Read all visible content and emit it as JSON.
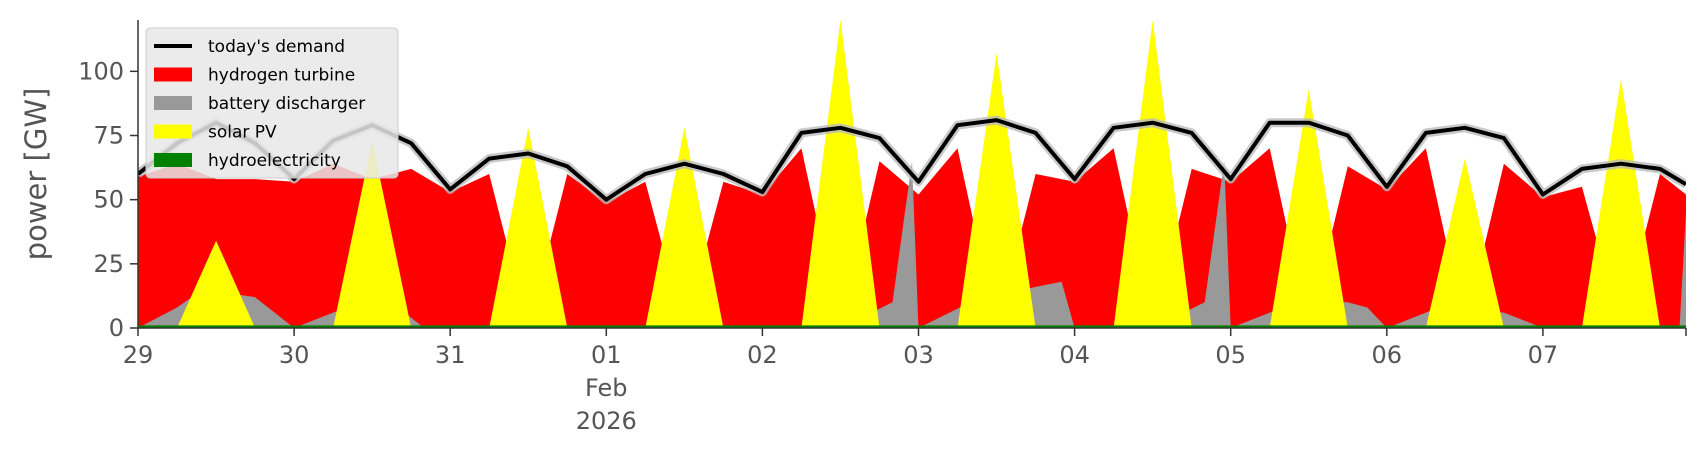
{
  "chart_data": {
    "type": "area",
    "ylabel": "power [GW]",
    "ylim": [
      0,
      120
    ],
    "yticks": [
      "0",
      "25",
      "50",
      "75",
      "100"
    ],
    "xlim": [
      "2026-01-29T00:00",
      "2026-02-07T22:00"
    ],
    "xticks": [
      {
        "date": "2026-01-29T00:00",
        "label": "29"
      },
      {
        "date": "2026-01-30T00:00",
        "label": "30"
      },
      {
        "date": "2026-01-31T00:00",
        "label": "31"
      },
      {
        "date": "2026-02-01T00:00",
        "label": "01"
      },
      {
        "date": "2026-02-02T00:00",
        "label": "02"
      },
      {
        "date": "2026-02-03T00:00",
        "label": "03"
      },
      {
        "date": "2026-02-04T00:00",
        "label": "04"
      },
      {
        "date": "2026-02-05T00:00",
        "label": "05"
      },
      {
        "date": "2026-02-06T00:00",
        "label": "06"
      },
      {
        "date": "2026-02-07T00:00",
        "label": "07"
      },
      {
        "date": "2026-02-07T22:00",
        "label": ""
      }
    ],
    "xtick_sublabels": {
      "month": "Feb",
      "year": "2026"
    },
    "grid": false,
    "legend_position": "top-left",
    "stack_order": [
      "hydroelectricity",
      "solar PV",
      "battery discharger",
      "hydrogen turbine"
    ],
    "series": [
      {
        "name": "today's demand",
        "kind": "line",
        "color": "#000000",
        "x": [
          "2026-01-29T00:00",
          "2026-01-29T06:00",
          "2026-01-29T12:00",
          "2026-01-29T18:00",
          "2026-01-30T00:00",
          "2026-01-30T06:00",
          "2026-01-30T12:00",
          "2026-01-30T18:00",
          "2026-01-31T00:00",
          "2026-01-31T06:00",
          "2026-01-31T12:00",
          "2026-01-31T18:00",
          "2026-02-01T00:00",
          "2026-02-01T06:00",
          "2026-02-01T12:00",
          "2026-02-01T18:00",
          "2026-02-02T00:00",
          "2026-02-02T06:00",
          "2026-02-02T12:00",
          "2026-02-02T18:00",
          "2026-02-03T00:00",
          "2026-02-03T06:00",
          "2026-02-03T12:00",
          "2026-02-03T18:00",
          "2026-02-04T00:00",
          "2026-02-04T06:00",
          "2026-02-04T12:00",
          "2026-02-04T18:00",
          "2026-02-05T00:00",
          "2026-02-05T06:00",
          "2026-02-05T12:00",
          "2026-02-05T18:00",
          "2026-02-06T00:00",
          "2026-02-06T06:00",
          "2026-02-06T12:00",
          "2026-02-06T18:00",
          "2026-02-07T00:00",
          "2026-02-07T06:00",
          "2026-02-07T12:00",
          "2026-02-07T18:00",
          "2026-02-07T22:00"
        ],
        "values": [
          60,
          72,
          80,
          72,
          58,
          73,
          79,
          72,
          54,
          66,
          68,
          63,
          50,
          60,
          64,
          60,
          53,
          76,
          78,
          74,
          57,
          79,
          81,
          76,
          58,
          78,
          80,
          76,
          58,
          80,
          80,
          75,
          55,
          76,
          78,
          74,
          52,
          62,
          64,
          62,
          56
        ]
      },
      {
        "name": "hydrogen turbine",
        "kind": "area",
        "color": "#ff0000",
        "x": [
          "2026-01-29T00:00",
          "2026-01-29T06:00",
          "2026-01-29T12:00",
          "2026-01-29T18:00",
          "2026-01-30T00:00",
          "2026-01-30T06:00",
          "2026-01-30T12:00",
          "2026-01-30T18:00",
          "2026-01-31T00:00",
          "2026-01-31T06:00",
          "2026-01-31T12:00",
          "2026-01-31T18:00",
          "2026-02-01T00:00",
          "2026-02-01T06:00",
          "2026-02-01T12:00",
          "2026-02-01T18:00",
          "2026-02-02T00:00",
          "2026-02-02T06:00",
          "2026-02-02T12:00",
          "2026-02-02T18:00",
          "2026-02-03T00:00",
          "2026-02-03T06:00",
          "2026-02-03T12:00",
          "2026-02-03T18:00",
          "2026-02-04T00:00",
          "2026-02-04T06:00",
          "2026-02-04T12:00",
          "2026-02-04T18:00",
          "2026-02-05T00:00",
          "2026-02-05T06:00",
          "2026-02-05T12:00",
          "2026-02-05T18:00",
          "2026-02-06T00:00",
          "2026-02-06T06:00",
          "2026-02-06T12:00",
          "2026-02-06T18:00",
          "2026-02-07T00:00",
          "2026-02-07T06:00",
          "2026-02-07T12:00",
          "2026-02-07T18:00",
          "2026-02-07T22:00"
        ],
        "values": [
          59,
          64,
          58,
          58,
          57,
          64,
          58,
          62,
          53,
          60,
          0,
          60,
          49,
          57,
          0,
          57,
          52,
          70,
          0,
          65,
          52,
          70,
          0,
          60,
          57,
          70,
          0,
          62,
          57,
          70,
          0,
          63,
          54,
          70,
          0,
          64,
          51,
          55,
          0,
          60,
          52
        ]
      },
      {
        "name": "battery discharger",
        "kind": "area",
        "color": "#999999",
        "x": [
          "2026-01-29T00:00",
          "2026-01-29T06:00",
          "2026-01-29T10:00",
          "2026-01-29T18:00",
          "2026-01-30T00:00",
          "2026-01-30T08:00",
          "2026-01-30T16:00",
          "2026-01-30T20:00",
          "2026-01-31T00:00",
          "2026-01-31T12:00",
          "2026-01-31T23:00",
          "2026-02-01T00:00",
          "2026-02-01T12:00",
          "2026-02-01T23:00",
          "2026-02-02T00:00",
          "2026-02-02T12:00",
          "2026-02-02T20:00",
          "2026-02-02T23:00",
          "2026-02-03T00:00",
          "2026-02-03T08:00",
          "2026-02-03T18:00",
          "2026-02-03T22:00",
          "2026-02-04T00:00",
          "2026-02-04T12:00",
          "2026-02-04T20:00",
          "2026-02-04T23:00",
          "2026-02-05T00:00",
          "2026-02-05T10:00",
          "2026-02-05T18:00",
          "2026-02-05T21:00",
          "2026-02-06T00:00",
          "2026-02-06T08:00",
          "2026-02-06T18:00",
          "2026-02-07T00:00",
          "2026-02-07T12:00",
          "2026-02-07T21:00",
          "2026-02-07T22:00"
        ],
        "values": [
          0,
          8,
          15,
          12,
          0,
          8,
          8,
          0,
          0,
          0,
          0,
          0,
          0,
          0,
          0,
          0,
          10,
          65,
          0,
          10,
          16,
          18,
          0,
          0,
          10,
          65,
          0,
          10,
          10,
          8,
          0,
          8,
          6,
          0,
          0,
          0,
          45
        ]
      },
      {
        "name": "solar PV",
        "kind": "area",
        "color": "#ffff00",
        "x": [
          "2026-01-29T06:00",
          "2026-01-29T12:00",
          "2026-01-29T18:00",
          "2026-01-30T06:00",
          "2026-01-30T12:00",
          "2026-01-30T18:00",
          "2026-01-31T06:00",
          "2026-01-31T12:00",
          "2026-01-31T18:00",
          "2026-02-01T06:00",
          "2026-02-01T12:00",
          "2026-02-01T18:00",
          "2026-02-02T06:00",
          "2026-02-02T12:00",
          "2026-02-02T18:00",
          "2026-02-03T06:00",
          "2026-02-03T12:00",
          "2026-02-03T18:00",
          "2026-02-04T06:00",
          "2026-02-04T12:00",
          "2026-02-04T18:00",
          "2026-02-05T06:00",
          "2026-02-05T12:00",
          "2026-02-05T18:00",
          "2026-02-06T06:00",
          "2026-02-06T12:00",
          "2026-02-06T18:00",
          "2026-02-07T06:00",
          "2026-02-07T12:00",
          "2026-02-07T18:00"
        ],
        "values": [
          0,
          34,
          0,
          0,
          73,
          0,
          0,
          78,
          0,
          0,
          78,
          0,
          0,
          120,
          0,
          0,
          107,
          0,
          0,
          120,
          0,
          0,
          93,
          0,
          0,
          66,
          0,
          0,
          97,
          0
        ]
      },
      {
        "name": "hydroelectricity",
        "kind": "area",
        "color": "#008000",
        "x": [
          "2026-01-29T00:00",
          "2026-02-07T22:00"
        ],
        "values": [
          1,
          1
        ]
      }
    ]
  }
}
